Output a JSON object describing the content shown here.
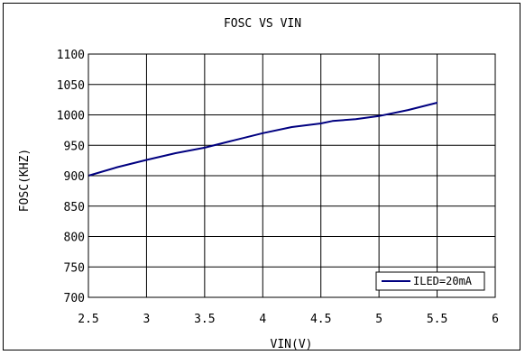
{
  "chart_data": {
    "type": "line",
    "title": "FOSC VS VIN",
    "xlabel": "VIN(V)",
    "ylabel": "FOSC(KHZ)",
    "xlim": [
      2.5,
      6
    ],
    "ylim": [
      700,
      1100
    ],
    "x_ticks": [
      "2.5",
      "3",
      "3.5",
      "4",
      "4.5",
      "5",
      "5.5",
      "6"
    ],
    "x_tick_values": [
      2.5,
      3,
      3.5,
      4,
      4.5,
      5,
      5.5,
      6
    ],
    "y_ticks": [
      "700",
      "750",
      "800",
      "850",
      "900",
      "950",
      "1000",
      "1050",
      "1100"
    ],
    "y_tick_values": [
      700,
      750,
      800,
      850,
      900,
      950,
      1000,
      1050,
      1100
    ],
    "grid": true,
    "legend_position": "bottom-right",
    "series": [
      {
        "name": "ILED=20mA",
        "color": "#000080",
        "x": [
          2.5,
          2.75,
          3.0,
          3.25,
          3.5,
          3.75,
          4.0,
          4.25,
          4.5,
          4.6,
          4.8,
          5.0,
          5.25,
          5.5
        ],
        "y": [
          900,
          914,
          926,
          937,
          946,
          958,
          970,
          980,
          986,
          990,
          993,
          998,
          1008,
          1020
        ]
      }
    ]
  }
}
